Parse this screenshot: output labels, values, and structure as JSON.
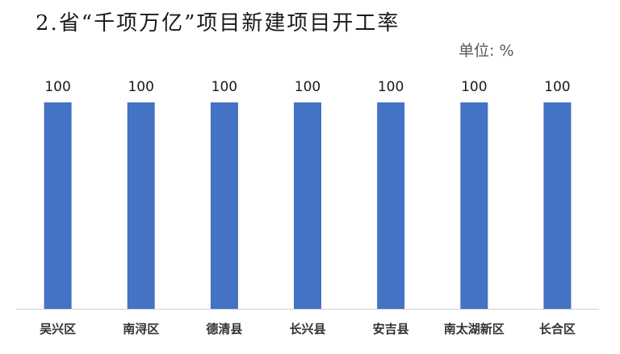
{
  "title": "2.省“千项万亿”项目新建项目开工率",
  "unit": "单位: %",
  "colors": {
    "bar": "#4472C4",
    "axis": "#d0d0d0",
    "text": "#1a1a1a"
  },
  "chart_data": {
    "type": "bar",
    "title": "2.省“千项万亿”项目新建项目开工率",
    "categories": [
      "吴兴区",
      "南浔区",
      "德清县",
      "长兴县",
      "安吉县",
      "南太湖新区",
      "长合区"
    ],
    "values": [
      100,
      100,
      100,
      100,
      100,
      100,
      100
    ],
    "data_labels": [
      "100",
      "100",
      "100",
      "100",
      "100",
      "100",
      "100"
    ],
    "ylim": [
      0,
      100
    ],
    "grid": false,
    "legend": "none"
  }
}
